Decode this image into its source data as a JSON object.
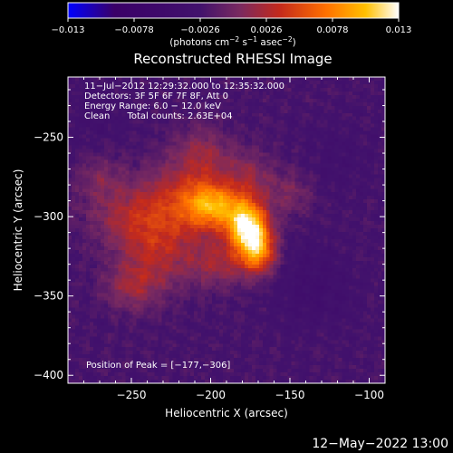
{
  "chart_data": {
    "type": "heatmap",
    "title": "Reconstructed RHESSI Image",
    "xlabel": "Heliocentric X (arcsec)",
    "ylabel": "Heliocentric Y (arcsec)",
    "xlim": [
      -290,
      -90
    ],
    "ylim": [
      -405,
      -212
    ],
    "x_ticks": [
      -250,
      -200,
      -150,
      -100
    ],
    "y_ticks": [
      -250,
      -300,
      -350,
      -400
    ],
    "x_tick_labels": [
      "−250",
      "−200",
      "−150",
      "−100"
    ],
    "y_tick_labels": [
      "−250",
      "−300",
      "−350",
      "−400"
    ],
    "colorbar": {
      "range": [
        -0.013,
        0.013
      ],
      "tick_values": [
        -0.013,
        -0.0078,
        -0.0026,
        0.0026,
        0.0078,
        0.013
      ],
      "tick_labels": [
        "−0.013",
        "−0.0078",
        "−0.0026",
        "0.0026",
        "0.0078",
        "0.013"
      ],
      "unit_label_parts": [
        "(photons cm",
        "−2",
        " s",
        "−1",
        " asec",
        "−2",
        ")"
      ],
      "colors": [
        "#0000ff",
        "#3a0068",
        "#42126c",
        "#7a2a60",
        "#c42a1c",
        "#ff7000",
        "#ffc000",
        "#ffffff"
      ]
    },
    "info_lines": [
      "11−Jul−2012 12:29:32.000 to 12:35:32.000",
      "Detectors: 3F 5F 6F 7F 8F, Att 0",
      "Energy Range: 6.0 − 12.0 keV",
      "Clean      Total counts: 2.63E+04"
    ],
    "peak_label": "Position of Peak = [−177,−306]",
    "peak": [
      -177,
      -306
    ],
    "background_value": -0.0024,
    "sources": [
      {
        "x": -177,
        "y": -306,
        "sx": 9,
        "sy": 11,
        "amp": 0.0135
      },
      {
        "x": -170,
        "y": -322,
        "sx": 8,
        "sy": 10,
        "amp": 0.0095
      },
      {
        "x": -198,
        "y": -293,
        "sx": 12,
        "sy": 10,
        "amp": 0.0085
      },
      {
        "x": -215,
        "y": -290,
        "sx": 20,
        "sy": 18,
        "amp": 0.0055
      },
      {
        "x": -250,
        "y": -300,
        "sx": 20,
        "sy": 14,
        "amp": 0.004
      },
      {
        "x": -235,
        "y": -325,
        "sx": 16,
        "sy": 16,
        "amp": 0.0042
      },
      {
        "x": -250,
        "y": -345,
        "sx": 12,
        "sy": 10,
        "amp": 0.0035
      },
      {
        "x": -205,
        "y": -260,
        "sx": 12,
        "sy": 12,
        "amp": 0.0032
      },
      {
        "x": -175,
        "y": -275,
        "sx": 10,
        "sy": 12,
        "amp": 0.0032
      },
      {
        "x": -150,
        "y": -285,
        "sx": 10,
        "sy": 10,
        "amp": 0.0028
      },
      {
        "x": -270,
        "y": -275,
        "sx": 10,
        "sy": 10,
        "amp": 0.0025
      },
      {
        "x": -195,
        "y": -330,
        "sx": 14,
        "sy": 10,
        "amp": 0.004
      }
    ],
    "negative_regions": [
      {
        "x": -135,
        "y": -345,
        "sx": 18,
        "sy": 18,
        "amp": -0.0016
      },
      {
        "x": -270,
        "y": -235,
        "sx": 14,
        "sy": 14,
        "amp": -0.001
      },
      {
        "x": -120,
        "y": -265,
        "sx": 16,
        "sy": 18,
        "amp": -0.0008
      }
    ]
  },
  "footer": {
    "timestamp": "12−May−2022 13:00"
  }
}
